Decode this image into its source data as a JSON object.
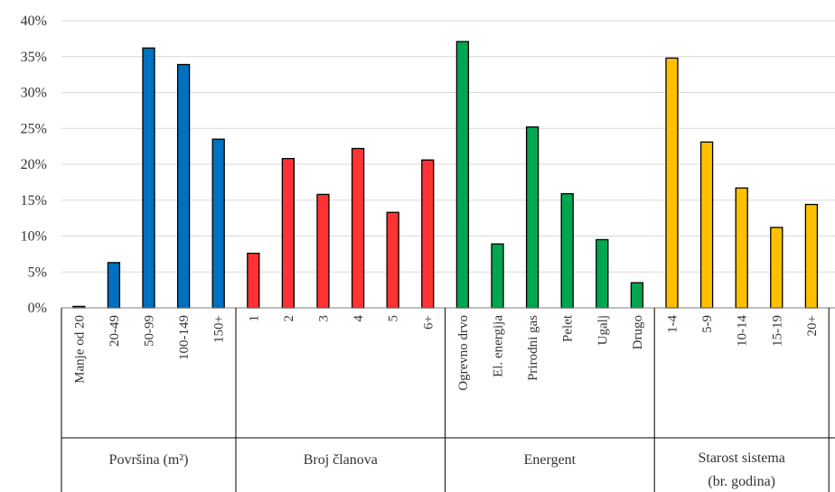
{
  "chart_data": {
    "type": "bar",
    "ylim": [
      0,
      40
    ],
    "y_ticks": [
      "0%",
      "5%",
      "10%",
      "15%",
      "20%",
      "25%",
      "30%",
      "35%",
      "40%"
    ],
    "grid": "horizontal",
    "groups": [
      {
        "name": "Površina (m²)",
        "color": "#0070C0",
        "categories": [
          "Manje od 20",
          "20-49",
          "50-99",
          "100-149",
          "150+"
        ],
        "values": [
          0.2,
          6.3,
          36.2,
          33.9,
          23.5
        ]
      },
      {
        "name": "Broj članova",
        "color": "#FF3333",
        "categories": [
          "1",
          "2",
          "3",
          "4",
          "5",
          "6+"
        ],
        "values": [
          7.6,
          20.8,
          15.8,
          22.2,
          13.3,
          20.6
        ]
      },
      {
        "name": "Energent",
        "color": "#00A650",
        "categories": [
          "Ogrevno drvo",
          "El. energija",
          "Prirodni gas",
          "Pelet",
          "Ugalj",
          "Drugo"
        ],
        "values": [
          37.1,
          8.9,
          25.2,
          15.9,
          9.5,
          3.5
        ]
      },
      {
        "name": "Starost sistema (br. godina)",
        "label_lines": [
          "Starost sistema",
          "(br. godina)"
        ],
        "color": "#FFC000",
        "categories": [
          "1-4",
          "5-9",
          "10-14",
          "15-19",
          "20+"
        ],
        "values": [
          34.8,
          23.1,
          16.7,
          11.2,
          14.4
        ]
      }
    ]
  }
}
